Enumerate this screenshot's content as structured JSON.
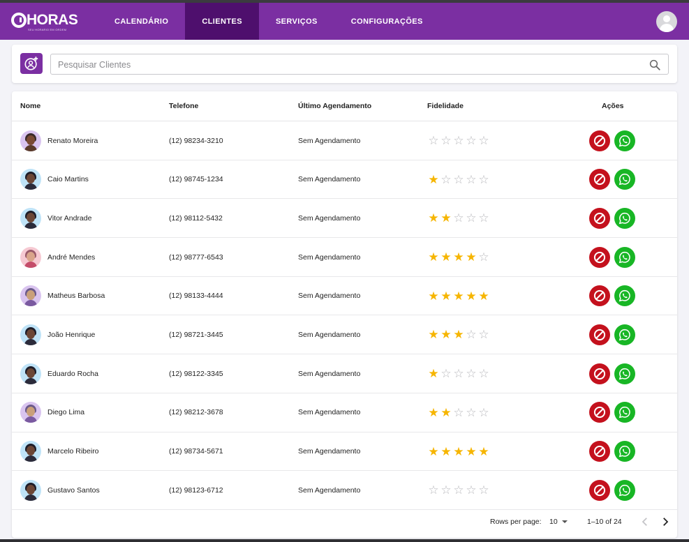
{
  "app": {
    "logo_text": "HORAS",
    "logo_subtitle": "SEU HORARIO EM ORDEM"
  },
  "nav": [
    {
      "label": "CALENDÁRIO",
      "active": false
    },
    {
      "label": "CLIENTES",
      "active": true
    },
    {
      "label": "SERVIÇOS",
      "active": false
    },
    {
      "label": "CONFIGURAÇÕES",
      "active": false
    }
  ],
  "search": {
    "placeholder": "Pesquisar Clientes",
    "value": ""
  },
  "table": {
    "headers": {
      "name": "Nome",
      "phone": "Telefone",
      "last": "Último Agendamento",
      "fidelity": "Fidelidade",
      "actions": "Ações"
    },
    "rows": [
      {
        "name": "Renato Moreira",
        "phone": "(12) 98234-3210",
        "last": "Sem Agendamento",
        "rating": 0,
        "avatar": {
          "bg": "#d9c4ef",
          "hair": "#3a2a2a",
          "skin": "#7a4a34",
          "shirt": "#5a3a2a"
        }
      },
      {
        "name": "Caio Martins",
        "phone": "(12) 98745-1234",
        "last": "Sem Agendamento",
        "rating": 1,
        "avatar": {
          "bg": "#bfe3f7",
          "hair": "#1e1e2a",
          "skin": "#6b4636",
          "shirt": "#2b2b3a"
        }
      },
      {
        "name": "Vitor Andrade",
        "phone": "(12) 98112-5432",
        "last": "Sem Agendamento",
        "rating": 2,
        "avatar": {
          "bg": "#bfe3f7",
          "hair": "#1e1e2a",
          "skin": "#6b4636",
          "shirt": "#2b2b3a"
        }
      },
      {
        "name": "André Mendes",
        "phone": "(12) 98777-6543",
        "last": "Sem Agendamento",
        "rating": 4,
        "avatar": {
          "bg": "#f6c9d2",
          "hair": "#9a5a6a",
          "skin": "#d9a48a",
          "shirt": "#c44d6a"
        }
      },
      {
        "name": "Matheus Barbosa",
        "phone": "(12) 98133-4444",
        "last": "Sem Agendamento",
        "rating": 5,
        "avatar": {
          "bg": "#d9c4ef",
          "hair": "#6b5a8a",
          "skin": "#c9a07a",
          "shirt": "#7a5aa0"
        }
      },
      {
        "name": "João Henrique",
        "phone": "(12) 98721-3445",
        "last": "Sem Agendamento",
        "rating": 3,
        "avatar": {
          "bg": "#bfe3f7",
          "hair": "#1e1e2a",
          "skin": "#6b4636",
          "shirt": "#2b2b3a"
        }
      },
      {
        "name": "Eduardo Rocha",
        "phone": "(12) 98122-3345",
        "last": "Sem Agendamento",
        "rating": 1,
        "avatar": {
          "bg": "#bfe3f7",
          "hair": "#1e1e2a",
          "skin": "#6b4636",
          "shirt": "#2b2b3a"
        }
      },
      {
        "name": "Diego Lima",
        "phone": "(12) 98212-3678",
        "last": "Sem Agendamento",
        "rating": 2,
        "avatar": {
          "bg": "#d9c4ef",
          "hair": "#6b5a8a",
          "skin": "#c9a07a",
          "shirt": "#7a5aa0"
        }
      },
      {
        "name": "Marcelo Ribeiro",
        "phone": "(12) 98734-5671",
        "last": "Sem Agendamento",
        "rating": 5,
        "avatar": {
          "bg": "#bfe3f7",
          "hair": "#1e1e2a",
          "skin": "#6b4636",
          "shirt": "#2b2b3a"
        }
      },
      {
        "name": "Gustavo Santos",
        "phone": "(12) 98123-6712",
        "last": "Sem Agendamento",
        "rating": 0,
        "avatar": {
          "bg": "#bfe3f7",
          "hair": "#1e1e2a",
          "skin": "#6b4636",
          "shirt": "#2b2b3a"
        }
      }
    ]
  },
  "pagination": {
    "rows_per_page_label": "Rows per page:",
    "rows_per_page": "10",
    "range": "1–10 of 24"
  },
  "icons": {
    "add_client": "add-user-icon",
    "search": "search-icon",
    "block": "block-icon",
    "whatsapp": "whatsapp-icon",
    "star": "star-icon",
    "user": "user-avatar-icon"
  },
  "colors": {
    "brand": "#7b2fa2",
    "nav_active": "#4e0f6d",
    "star": "#f6b500",
    "block": "#c4111d",
    "whatsapp": "#18b625"
  }
}
